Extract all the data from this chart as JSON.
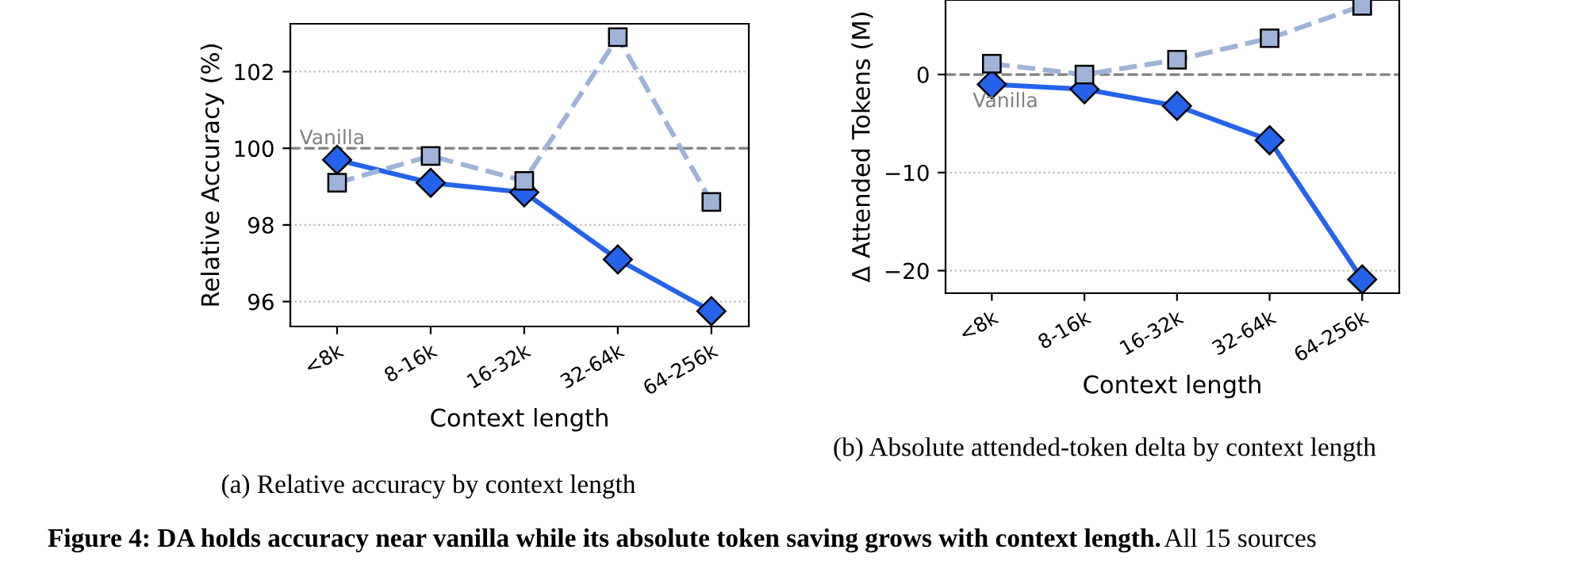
{
  "chart_data": [
    {
      "type": "line",
      "categories": [
        "<8k",
        "8-16k",
        "16-32k",
        "32-64k",
        "64-256k"
      ],
      "xlabel": "Context length",
      "ylabel": "Relative Accuracy (%)",
      "ylim": [
        95.35,
        103.25
      ],
      "yticks": [
        96,
        98,
        100,
        102
      ],
      "grid": "y",
      "series": [
        {
          "color": "#2563eb",
          "values": [
            99.7,
            99.1,
            98.85,
            97.1,
            95.75
          ],
          "marker": "diamond",
          "line_style": "solid"
        },
        {
          "color": "#9fb3d9",
          "values": [
            99.1,
            99.8,
            99.15,
            102.9,
            98.6
          ],
          "marker": "square",
          "line_style": "dashed"
        }
      ],
      "ref_lines": [
        {
          "axis": "y",
          "value": 100,
          "label": "Vanilla",
          "color": "#808080",
          "line_style": "dashed"
        }
      ],
      "annotations": [
        "(a) Relative accuracy by context length",
        "Figure 4: DA holds accuracy near vanilla while its absolute token saving grows with context length.",
        "All 15 sources"
      ]
    },
    {
      "type": "line",
      "categories": [
        "<8k",
        "8-16k",
        "16-32k",
        "32-64k",
        "64-256k"
      ],
      "xlabel": "Context length",
      "ylabel": "Δ Attended Tokens (M)",
      "ylim": [
        -22.3,
        7.6
      ],
      "yticks": [
        {
          "value": -20,
          "label": "−20"
        },
        {
          "value": -10,
          "label": "−10"
        },
        0
      ],
      "grid": "y",
      "series": [
        {
          "color": "#2563eb",
          "values": [
            -1.0,
            -1.5,
            -3.2,
            -6.7,
            -20.9
          ],
          "marker": "diamond",
          "line_style": "solid"
        },
        {
          "color": "#9fb3d9",
          "values": [
            1.1,
            0.0,
            1.5,
            3.7,
            7.0
          ],
          "marker": "square",
          "line_style": "dashed"
        }
      ],
      "ref_lines": [
        {
          "axis": "y",
          "value": 0,
          "label": "Vanilla",
          "color": "#808080",
          "line_style": "dashed"
        }
      ],
      "annotations": [
        "(b) Absolute attended-token delta by context length"
      ]
    }
  ]
}
